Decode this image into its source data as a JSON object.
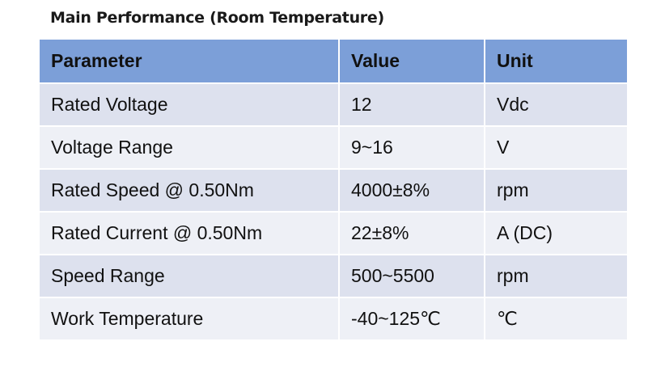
{
  "header": {
    "title": "Main Performance (Room Temperature)"
  },
  "table": {
    "columns": [
      "Parameter",
      "Value",
      "Unit"
    ],
    "rows": [
      [
        "Rated Voltage",
        "12",
        "Vdc"
      ],
      [
        "Voltage Range",
        "9~16",
        "V"
      ],
      [
        "Rated Speed @ 0.50Nm",
        "4000±8%",
        "rpm"
      ],
      [
        "Rated Current @ 0.50Nm",
        "22±8%",
        "A (DC)"
      ],
      [
        "Speed Range",
        "500~5500",
        "rpm"
      ],
      [
        "Work Temperature",
        "-40~125℃",
        "℃"
      ]
    ]
  }
}
